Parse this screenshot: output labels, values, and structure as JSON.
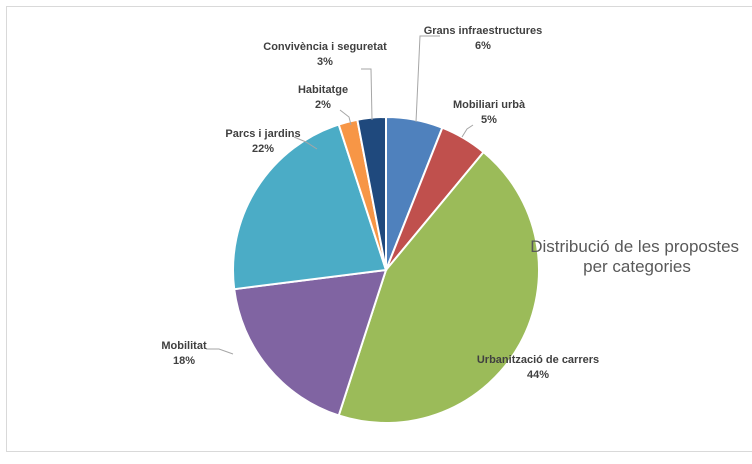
{
  "chart_data": {
    "type": "pie",
    "title_lines": [
      "Distribució de les propostes",
      "per categories"
    ],
    "slices": [
      {
        "name": "Grans infraestructures",
        "value": 6,
        "label": "6%",
        "color": "#4f81bd"
      },
      {
        "name": "Mobiliari urbà",
        "value": 5,
        "label": "5%",
        "color": "#c0504d"
      },
      {
        "name": "Urbanització de carrers",
        "value": 44,
        "label": "44%",
        "color": "#9bbb59"
      },
      {
        "name": "Mobilitat",
        "value": 18,
        "label": "18%",
        "color": "#8064a2"
      },
      {
        "name": "Parcs i jardins",
        "value": 22,
        "label": "22%",
        "color": "#4bacc6"
      },
      {
        "name": "Habitatge",
        "value": 2,
        "label": "2%",
        "color": "#f79646"
      },
      {
        "name": "Convivència i seguretat",
        "value": 3,
        "label": "3%",
        "color": "#1f497d"
      }
    ],
    "start": "12 o'clock",
    "direction": "clockwise",
    "legend": "none",
    "data_labels": "category name and percentage"
  }
}
